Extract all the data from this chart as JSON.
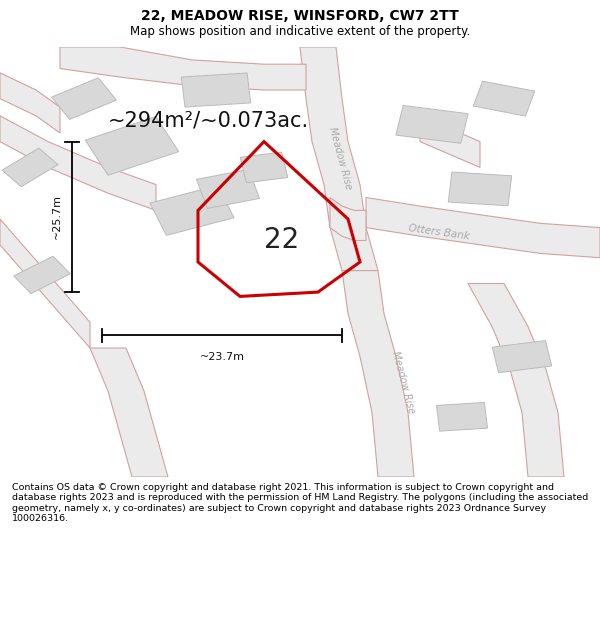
{
  "title": "22, MEADOW RISE, WINSFORD, CW7 2TT",
  "subtitle": "Map shows position and indicative extent of the property.",
  "footer": "Contains OS data © Crown copyright and database right 2021. This information is subject to Crown copyright and database rights 2023 and is reproduced with the permission of HM Land Registry. The polygons (including the associated geometry, namely x, y co-ordinates) are subject to Crown copyright and database rights 2023 Ordnance Survey 100026316.",
  "area_label": "~294m²/~0.073ac.",
  "plot_number": "22",
  "width_label": "~23.7m",
  "height_label": "~25.7m",
  "plot_color": "#cc0000",
  "road_fill": "#ebebeb",
  "road_edge": "#d4a0a0",
  "building_fill": "#d8d8d8",
  "building_edge": "#bbbbbb",
  "map_bg": "#f0f0f0",
  "street_label_1": "Meadow Rise",
  "street_label_2": "Meadow Rise",
  "street_label_3": "Otters Bank",
  "title_fontsize": 10,
  "subtitle_fontsize": 8.5,
  "footer_fontsize": 6.8,
  "area_fontsize": 15,
  "plot_num_fontsize": 20,
  "dim_fontsize": 8
}
